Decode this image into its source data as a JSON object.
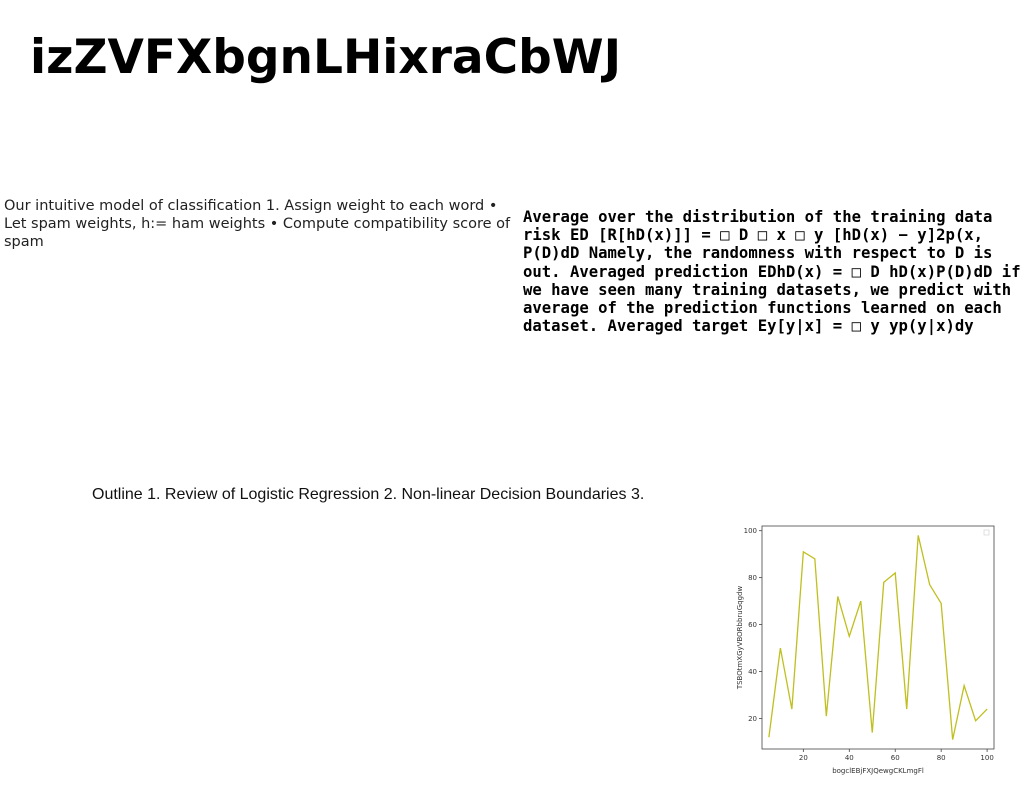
{
  "title": "izZVFXbgnLHixraCbWJ",
  "left_paragraph": "Our intuitive model of classification 1. Assign weight to each word • Let spam weights, h:= ham weights • Compute compatibility score of spam",
  "right_paragraph": "Average over the distribution of the training data risk ED [R[hD(x)]] = □ D □ x □ y [hD(x) − y]2p(x, P(D)dD Namely, the randomness with respect to D is out. Averaged prediction EDhD(x) = □ D hD(x)P(D)dD if we have seen many training datasets, we predict with average of the prediction functions learned on each dataset. Averaged target Ey[y|x] = □ y yp(y|x)dy",
  "outline": "Outline 1. Review of Logistic Regression 2. Non-linear Decision Boundaries 3.",
  "chart_data": {
    "type": "line",
    "x": [
      5,
      10,
      15,
      20,
      25,
      30,
      35,
      40,
      45,
      50,
      55,
      60,
      65,
      70,
      75,
      80,
      85,
      90,
      95,
      100
    ],
    "series": [
      {
        "values": [
          12,
          50,
          24,
          91,
          88,
          21,
          72,
          55,
          70,
          14,
          78,
          82,
          24,
          98,
          77,
          69,
          11,
          34,
          19,
          24
        ],
        "color": "#bfbf1f"
      }
    ],
    "xlabel": "bogclEBjFXJQewgCKLmgFl",
    "ylabel": "TSBOtmXGyVBORbbruGqgdw",
    "xlim": [
      2,
      103
    ],
    "ylim": [
      7,
      102
    ],
    "xticks": [
      "20",
      "40",
      "60",
      "80",
      "100"
    ],
    "yticks": [
      "20",
      "40",
      "60",
      "80",
      "100"
    ],
    "grid": false,
    "legend": "top-right"
  }
}
